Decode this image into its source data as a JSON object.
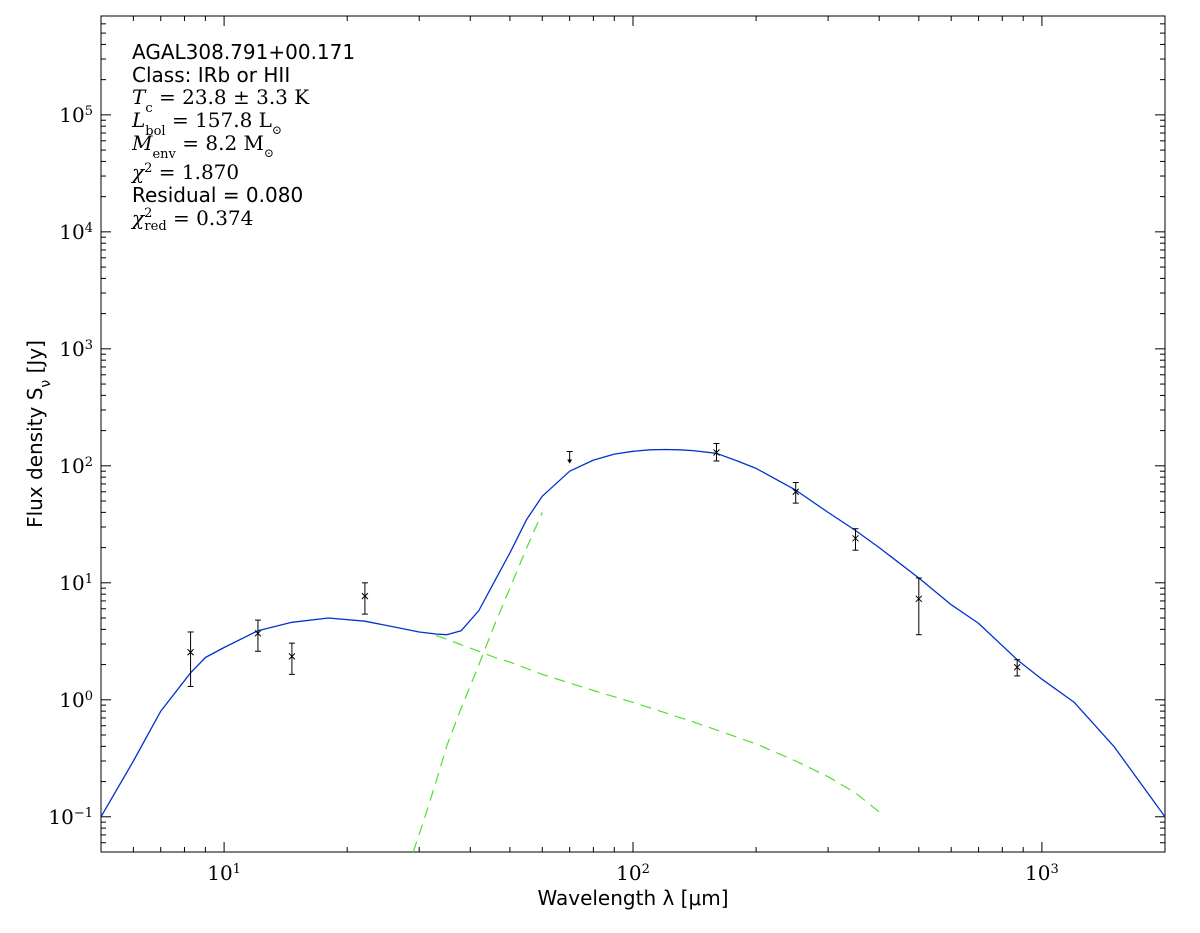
{
  "chart_data": {
    "type": "scatter",
    "xlabel": "Wavelength λ [μm]",
    "ylabel": "Flux density S",
    "ylabel_sub": "ν",
    "ylabel_unit": " [Jy]",
    "xscale": "log",
    "yscale": "log",
    "xlim": [
      5,
      2000
    ],
    "ylim": [
      0.05,
      700000
    ],
    "grid": false,
    "x_ticks": [
      {
        "value": 10,
        "base": "10",
        "exp": "1"
      },
      {
        "value": 100,
        "base": "10",
        "exp": "2"
      },
      {
        "value": 1000,
        "base": "10",
        "exp": "3"
      }
    ],
    "y_ticks": [
      {
        "value": 0.1,
        "base": "10",
        "exp": "−1"
      },
      {
        "value": 1,
        "base": "10",
        "exp": "0"
      },
      {
        "value": 10,
        "base": "10",
        "exp": "1"
      },
      {
        "value": 100,
        "base": "10",
        "exp": "2"
      },
      {
        "value": 1000,
        "base": "10",
        "exp": "3"
      },
      {
        "value": 10000,
        "base": "10",
        "exp": "4"
      },
      {
        "value": 100000,
        "base": "10",
        "exp": "5"
      }
    ],
    "annotations": {
      "source": "AGAL308.791+00.171",
      "class_text": "Class: IRb or HII",
      "tc": {
        "sym": "T",
        "sub": "c",
        "rest": " = 23.8 ± 3.3 K"
      },
      "lbol": {
        "sym": "L",
        "sub": "bol",
        "rest": " = 157.8 L",
        "after": "⊙"
      },
      "menv": {
        "sym": "M",
        "sub": "env",
        "rest": " = 8.2 M",
        "after": "⊙"
      },
      "chi2": {
        "sym": "χ",
        "sup": "2",
        "rest": " = 1.870"
      },
      "residual_text": "Residual = 0.080",
      "chi2red": {
        "sym": "χ",
        "sup": "2",
        "sub": "red",
        "rest": " = 0.374"
      }
    },
    "points": [
      {
        "x": 8.28,
        "y": 2.55,
        "err_low": 1.25,
        "err_high": 1.25
      },
      {
        "x": 12.1,
        "y": 3.7,
        "err_low": 1.1,
        "err_high": 1.1
      },
      {
        "x": 14.65,
        "y": 2.35,
        "err_low": 0.7,
        "err_high": 0.7
      },
      {
        "x": 22.1,
        "y": 7.7,
        "err_low": 2.3,
        "err_high": 2.3
      },
      {
        "x": 160,
        "y": 130,
        "err_low": 20,
        "err_high": 25
      },
      {
        "x": 250,
        "y": 60,
        "err_low": 12,
        "err_high": 12
      },
      {
        "x": 350,
        "y": 24,
        "err_low": 5,
        "err_high": 5
      },
      {
        "x": 500,
        "y": 7.3,
        "err_low": 3.7,
        "err_high": 3.7
      },
      {
        "x": 870,
        "y": 1.9,
        "err_low": 0.3,
        "err_high": 0.3
      }
    ],
    "upper_limits": [
      {
        "x": 70,
        "y": 125
      }
    ],
    "series": [
      {
        "style": "solid",
        "color": "#0033cc",
        "x": [
          5,
          6,
          7,
          8.28,
          9,
          10,
          12.1,
          14.65,
          18,
          22.1,
          26,
          30,
          33,
          35,
          38,
          42,
          46,
          50,
          55,
          60,
          70,
          80,
          90,
          100,
          110,
          120,
          130,
          140,
          160,
          180,
          200,
          250,
          300,
          350,
          400,
          500,
          600,
          700,
          870,
          1000,
          1200,
          1500,
          2000
        ],
        "y": [
          0.1,
          0.3,
          0.8,
          1.7,
          2.3,
          2.8,
          3.9,
          4.6,
          5.0,
          4.7,
          4.2,
          3.8,
          3.65,
          3.6,
          3.9,
          5.8,
          10.5,
          18,
          35,
          55,
          90,
          112,
          126,
          133,
          137,
          138,
          137,
          135,
          128,
          110,
          95,
          62,
          40,
          28,
          20,
          11,
          6.5,
          4.5,
          2.2,
          1.5,
          0.95,
          0.4,
          0.1
        ]
      },
      {
        "style": "dashed",
        "color": "#55dd33",
        "x": [
          33,
          35,
          38,
          42,
          46,
          50,
          60,
          80,
          100,
          140,
          200,
          250,
          300,
          350,
          400
        ],
        "y": [
          3.55,
          3.3,
          2.95,
          2.6,
          2.3,
          2.1,
          1.65,
          1.2,
          0.95,
          0.65,
          0.42,
          0.3,
          0.22,
          0.16,
          0.11
        ]
      },
      {
        "style": "dashed",
        "color": "#55dd33",
        "x": [
          29,
          31,
          33,
          35,
          38,
          42,
          46,
          50,
          55,
          60
        ],
        "y": [
          0.05,
          0.1,
          0.2,
          0.4,
          0.85,
          2.0,
          4.5,
          9.0,
          20,
          40
        ]
      }
    ]
  }
}
